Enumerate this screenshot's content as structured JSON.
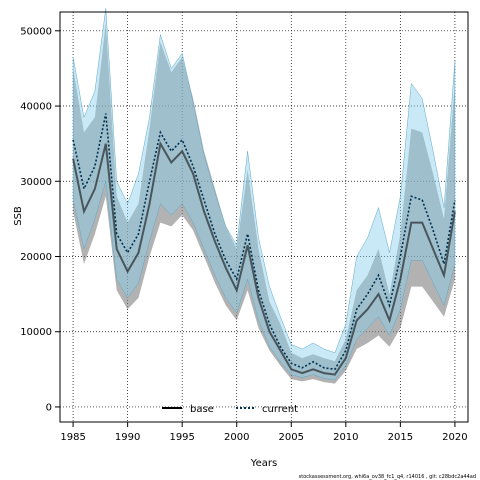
{
  "chart_data": {
    "type": "area",
    "xlabel": "Years",
    "ylabel": "SSB",
    "xlim": [
      1983.8,
      2021.2
    ],
    "ylim": [
      -2000,
      52500
    ],
    "xticks": [
      1985,
      1990,
      1995,
      2000,
      2005,
      2010,
      2015,
      2020
    ],
    "yticks": [
      0,
      10000,
      20000,
      30000,
      40000,
      50000
    ],
    "grid": "dotted",
    "legend_position": "bottom-center",
    "series": [
      {
        "name": "base",
        "color": "#7f7f7f",
        "line_color": "#000000",
        "line_style": "solid",
        "years": [
          1985,
          1986,
          1987,
          1988,
          1989,
          1990,
          1991,
          1992,
          1993,
          1994,
          1995,
          1996,
          1997,
          1998,
          1999,
          2000,
          2001,
          2002,
          2003,
          2004,
          2005,
          2006,
          2007,
          2008,
          2009,
          2010,
          2011,
          2012,
          2013,
          2014,
          2015,
          2016,
          2017,
          2018,
          2019,
          2020
        ],
        "values": [
          33000,
          26000,
          29000,
          35000,
          21000,
          18000,
          20500,
          27000,
          35000,
          32500,
          34000,
          31000,
          26000,
          22000,
          18500,
          15500,
          21500,
          14500,
          10000,
          7500,
          5000,
          4500,
          5000,
          4500,
          4300,
          6500,
          11500,
          13000,
          15000,
          11500,
          17000,
          24500,
          24500,
          21000,
          17500,
          26000
        ],
        "lower": [
          26000,
          19000,
          23000,
          28000,
          15500,
          13000,
          14500,
          20000,
          24500,
          24000,
          25500,
          23500,
          20000,
          16500,
          13500,
          11500,
          15500,
          10500,
          7500,
          5500,
          3700,
          3400,
          3700,
          3300,
          3100,
          4800,
          7700,
          8500,
          9500,
          8000,
          10500,
          16000,
          16000,
          14000,
          12000,
          17000
        ],
        "upper": [
          45000,
          36500,
          38500,
          51000,
          28000,
          24500,
          27000,
          37000,
          48500,
          44500,
          46500,
          41000,
          34000,
          29000,
          24000,
          21000,
          31500,
          21000,
          14000,
          11000,
          7200,
          6500,
          7000,
          6500,
          6100,
          9000,
          15500,
          17500,
          21000,
          15000,
          23000,
          37000,
          36500,
          31000,
          25000,
          43000
        ]
      },
      {
        "name": "current",
        "color": "#87ceeb",
        "line_color": "#003050",
        "line_style": "dotted",
        "years": [
          1985,
          1986,
          1987,
          1988,
          1989,
          1990,
          1991,
          1992,
          1993,
          1994,
          1995,
          1996,
          1997,
          1998,
          1999,
          2000,
          2001,
          2002,
          2003,
          2004,
          2005,
          2006,
          2007,
          2008,
          2009,
          2010,
          2011,
          2012,
          2013,
          2014,
          2015,
          2016,
          2017,
          2018,
          2019,
          2020
        ],
        "values": [
          35500,
          29000,
          32000,
          39000,
          23000,
          20500,
          23000,
          30000,
          36500,
          34000,
          35500,
          32000,
          27500,
          23000,
          19500,
          17000,
          23000,
          15500,
          11000,
          8000,
          5800,
          5200,
          6000,
          5200,
          5000,
          7500,
          13000,
          15000,
          17500,
          13500,
          20000,
          28000,
          27500,
          23500,
          19000,
          27500
        ],
        "lower": [
          27500,
          21000,
          25000,
          30000,
          17000,
          14500,
          16500,
          22000,
          27000,
          25500,
          27000,
          24500,
          21000,
          17500,
          14500,
          12500,
          17000,
          11500,
          8000,
          6000,
          4300,
          3900,
          4300,
          3800,
          3600,
          5500,
          9000,
          10500,
          12000,
          9500,
          13000,
          19500,
          19500,
          16500,
          13500,
          19000
        ],
        "upper": [
          46500,
          38500,
          42000,
          53000,
          30000,
          27000,
          31000,
          38500,
          49500,
          45000,
          47000,
          40500,
          33500,
          28500,
          24000,
          21500,
          34000,
          22500,
          16000,
          12000,
          8300,
          7700,
          8500,
          7700,
          7200,
          11000,
          20000,
          22500,
          26500,
          20500,
          28000,
          43000,
          41000,
          34000,
          26500,
          46000
        ]
      }
    ]
  },
  "footnote": "stockassessment.org, whi6a_ov38_fc1_q4, r14016 , git: c28bdc2a44ad"
}
